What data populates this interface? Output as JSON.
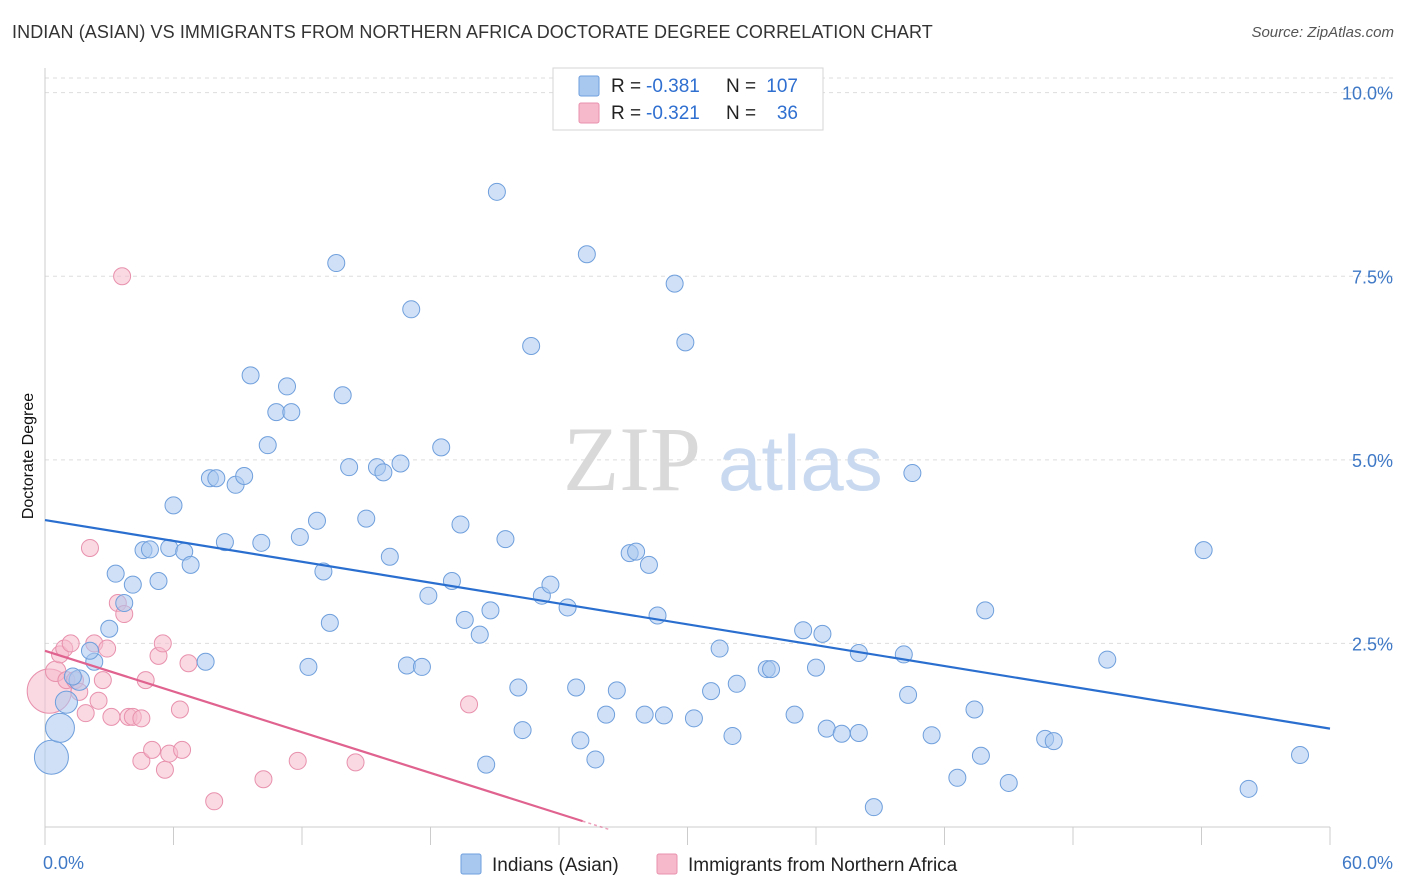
{
  "title": "INDIAN (ASIAN) VS IMMIGRANTS FROM NORTHERN AFRICA DOCTORATE DEGREE CORRELATION CHART",
  "source": "Source: ZipAtlas.com",
  "watermark": {
    "zip": "ZIP",
    "atlas": "atlas"
  },
  "colors": {
    "blue_fill": "#a9c8f0",
    "blue_stroke": "#6f9fdc",
    "blue_line": "#2a6fcf",
    "pink_fill": "#f6b9cc",
    "pink_stroke": "#e891ad",
    "pink_line": "#e0628f",
    "axis_label": "#3f79c6",
    "grid": "#dddddd"
  },
  "legend": {
    "r_label": "R =",
    "n_label": "N =",
    "rows": [
      {
        "series": "blue",
        "r": "-0.381",
        "n": "107"
      },
      {
        "series": "pink",
        "r": "-0.321",
        "n": "36"
      }
    ]
  },
  "chart_data": {
    "type": "scatter",
    "title": "INDIAN (ASIAN) VS IMMIGRANTS FROM NORTHERN AFRICA DOCTORATE DEGREE CORRELATION CHART",
    "xlabel": "",
    "ylabel": "Doctorate Degree",
    "xlim": [
      0,
      60
    ],
    "ylim": [
      0,
      10.2
    ],
    "x_tick_labels": [
      "0.0%",
      "60.0%"
    ],
    "y_ticks": [
      2.5,
      5.0,
      7.5,
      10.0
    ],
    "y_tick_labels": [
      "2.5%",
      "5.0%",
      "7.5%",
      "10.0%"
    ],
    "grid": "horizontal dashed",
    "legend_position": "top-center and bottom",
    "series": [
      {
        "name": "Indians (Asian)",
        "color": "blue",
        "trend": {
          "x": [
            0,
            60
          ],
          "y": [
            4.18,
            1.34
          ]
        },
        "points": [
          [
            0.3,
            0.95,
            2.0
          ],
          [
            0.7,
            1.35,
            1.7
          ],
          [
            1.0,
            1.7,
            1.3
          ],
          [
            1.6,
            2.0,
            1.2
          ],
          [
            1.3,
            2.05,
            1.0
          ],
          [
            2.3,
            2.25,
            1.0
          ],
          [
            2.1,
            2.4,
            1.0
          ],
          [
            3.0,
            2.7,
            1.0
          ],
          [
            3.7,
            3.05,
            1.0
          ],
          [
            4.1,
            3.3,
            1.0
          ],
          [
            3.3,
            3.45,
            1.0
          ],
          [
            4.6,
            3.77,
            1.0
          ],
          [
            4.9,
            3.78,
            1.0
          ],
          [
            5.8,
            3.8,
            1.0
          ],
          [
            5.3,
            3.35,
            1.0
          ],
          [
            6.5,
            3.75,
            1.0
          ],
          [
            6.8,
            3.57,
            1.0
          ],
          [
            7.5,
            2.25,
            1.0
          ],
          [
            6.0,
            4.38,
            1.0
          ],
          [
            7.7,
            4.75,
            1.0
          ],
          [
            8.0,
            4.75,
            1.0
          ],
          [
            8.9,
            4.66,
            1.0
          ],
          [
            9.3,
            4.78,
            1.0
          ],
          [
            8.4,
            3.88,
            1.0
          ],
          [
            9.6,
            6.15,
            1.0
          ],
          [
            10.1,
            3.87,
            1.0
          ],
          [
            10.4,
            5.2,
            1.0
          ],
          [
            10.8,
            5.65,
            1.0
          ],
          [
            11.3,
            6.0,
            1.0
          ],
          [
            11.5,
            5.65,
            1.0
          ],
          [
            11.9,
            3.95,
            1.0
          ],
          [
            12.3,
            2.18,
            1.0
          ],
          [
            12.7,
            4.17,
            1.0
          ],
          [
            13.0,
            3.48,
            1.0
          ],
          [
            13.3,
            2.78,
            1.0
          ],
          [
            13.6,
            7.68,
            1.0
          ],
          [
            13.9,
            5.88,
            1.0
          ],
          [
            14.2,
            4.9,
            1.0
          ],
          [
            15.0,
            4.2,
            1.0
          ],
          [
            15.5,
            4.9,
            1.0
          ],
          [
            15.8,
            4.83,
            1.0
          ],
          [
            16.1,
            3.68,
            1.0
          ],
          [
            16.6,
            4.95,
            1.0
          ],
          [
            16.9,
            2.2,
            1.0
          ],
          [
            17.1,
            7.05,
            1.0
          ],
          [
            17.6,
            2.18,
            1.0
          ],
          [
            17.9,
            3.15,
            1.0
          ],
          [
            18.5,
            5.17,
            1.0
          ],
          [
            19.0,
            3.35,
            1.0
          ],
          [
            19.4,
            4.12,
            1.0
          ],
          [
            19.6,
            2.82,
            1.0
          ],
          [
            20.3,
            2.62,
            1.0
          ],
          [
            20.6,
            0.85,
            1.0
          ],
          [
            20.8,
            2.95,
            1.0
          ],
          [
            21.1,
            8.65,
            1.0
          ],
          [
            21.5,
            3.92,
            1.0
          ],
          [
            22.1,
            1.9,
            1.0
          ],
          [
            22.3,
            1.32,
            1.0
          ],
          [
            22.7,
            6.55,
            1.0
          ],
          [
            23.2,
            3.15,
            1.0
          ],
          [
            23.6,
            3.3,
            1.0
          ],
          [
            24.4,
            2.99,
            1.0
          ],
          [
            24.8,
            1.9,
            1.0
          ],
          [
            25.0,
            1.18,
            1.0
          ],
          [
            25.3,
            7.8,
            1.0
          ],
          [
            25.7,
            0.92,
            1.0
          ],
          [
            26.2,
            1.53,
            1.0
          ],
          [
            26.7,
            1.86,
            1.0
          ],
          [
            27.3,
            3.73,
            1.0
          ],
          [
            27.6,
            3.75,
            1.0
          ],
          [
            28.0,
            1.53,
            1.0
          ],
          [
            28.2,
            3.57,
            1.0
          ],
          [
            28.6,
            2.88,
            1.0
          ],
          [
            28.9,
            1.52,
            1.0
          ],
          [
            29.4,
            7.4,
            1.0
          ],
          [
            29.9,
            6.6,
            1.0
          ],
          [
            30.3,
            1.48,
            1.0
          ],
          [
            31.1,
            1.85,
            1.0
          ],
          [
            31.5,
            2.43,
            1.0
          ],
          [
            32.3,
            1.95,
            1.0
          ],
          [
            32.1,
            1.24,
            1.0
          ],
          [
            33.7,
            2.15,
            1.0
          ],
          [
            33.9,
            2.15,
            1.0
          ],
          [
            35.0,
            1.53,
            1.0
          ],
          [
            35.4,
            2.68,
            1.0
          ],
          [
            36.0,
            2.17,
            1.0
          ],
          [
            36.3,
            2.63,
            1.0
          ],
          [
            36.5,
            1.34,
            1.0
          ],
          [
            37.2,
            1.27,
            1.0
          ],
          [
            38.0,
            2.37,
            1.0
          ],
          [
            38.0,
            1.28,
            1.0
          ],
          [
            38.7,
            0.27,
            1.0
          ],
          [
            40.1,
            2.35,
            1.0
          ],
          [
            40.3,
            1.8,
            1.0
          ],
          [
            40.5,
            4.82,
            1.0
          ],
          [
            41.4,
            1.25,
            1.0
          ],
          [
            42.6,
            0.67,
            1.0
          ],
          [
            43.4,
            1.6,
            1.0
          ],
          [
            43.7,
            0.97,
            1.0
          ],
          [
            43.9,
            2.95,
            1.0
          ],
          [
            45.0,
            0.6,
            1.0
          ],
          [
            46.7,
            1.2,
            1.0
          ],
          [
            47.1,
            1.17,
            1.0
          ],
          [
            49.6,
            2.28,
            1.0
          ],
          [
            54.1,
            3.77,
            1.0
          ],
          [
            56.2,
            0.52,
            1.0
          ],
          [
            58.6,
            0.98,
            1.0
          ]
        ]
      },
      {
        "name": "Immigrants from Northern Africa",
        "color": "pink",
        "trend": {
          "x": [
            0,
            25.1
          ],
          "y": [
            2.4,
            0.08
          ]
        },
        "points": [
          [
            0.2,
            1.85,
            2.6
          ],
          [
            0.5,
            2.12,
            1.2
          ],
          [
            0.7,
            2.35,
            1.0
          ],
          [
            0.9,
            2.43,
            1.0
          ],
          [
            1.0,
            2.0,
            1.0
          ],
          [
            1.2,
            2.5,
            1.0
          ],
          [
            1.4,
            2.0,
            1.0
          ],
          [
            1.6,
            1.84,
            1.0
          ],
          [
            1.9,
            1.55,
            1.0
          ],
          [
            2.1,
            3.8,
            1.0
          ],
          [
            2.3,
            2.5,
            1.0
          ],
          [
            2.5,
            1.72,
            1.0
          ],
          [
            2.7,
            2.0,
            1.0
          ],
          [
            2.9,
            2.43,
            1.0
          ],
          [
            3.1,
            1.5,
            1.0
          ],
          [
            3.4,
            3.05,
            1.0
          ],
          [
            3.6,
            7.5,
            1.0
          ],
          [
            3.7,
            2.9,
            1.0
          ],
          [
            3.9,
            1.5,
            1.0
          ],
          [
            4.1,
            1.5,
            1.0
          ],
          [
            4.5,
            1.48,
            1.0
          ],
          [
            4.5,
            0.9,
            1.0
          ],
          [
            4.7,
            2.0,
            1.0
          ],
          [
            5.0,
            1.05,
            1.0
          ],
          [
            5.3,
            2.33,
            1.0
          ],
          [
            5.5,
            2.5,
            1.0
          ],
          [
            5.6,
            0.78,
            1.0
          ],
          [
            5.8,
            1.0,
            1.0
          ],
          [
            6.3,
            1.6,
            1.0
          ],
          [
            6.4,
            1.05,
            1.0
          ],
          [
            6.7,
            2.23,
            1.0
          ],
          [
            7.9,
            0.35,
            1.0
          ],
          [
            10.2,
            0.65,
            1.0
          ],
          [
            11.8,
            0.9,
            1.0
          ],
          [
            14.5,
            0.88,
            1.0
          ],
          [
            19.8,
            1.67,
            1.0
          ]
        ]
      }
    ],
    "legend_series": [
      "Indians (Asian)",
      "Immigrants from Northern Africa"
    ]
  }
}
